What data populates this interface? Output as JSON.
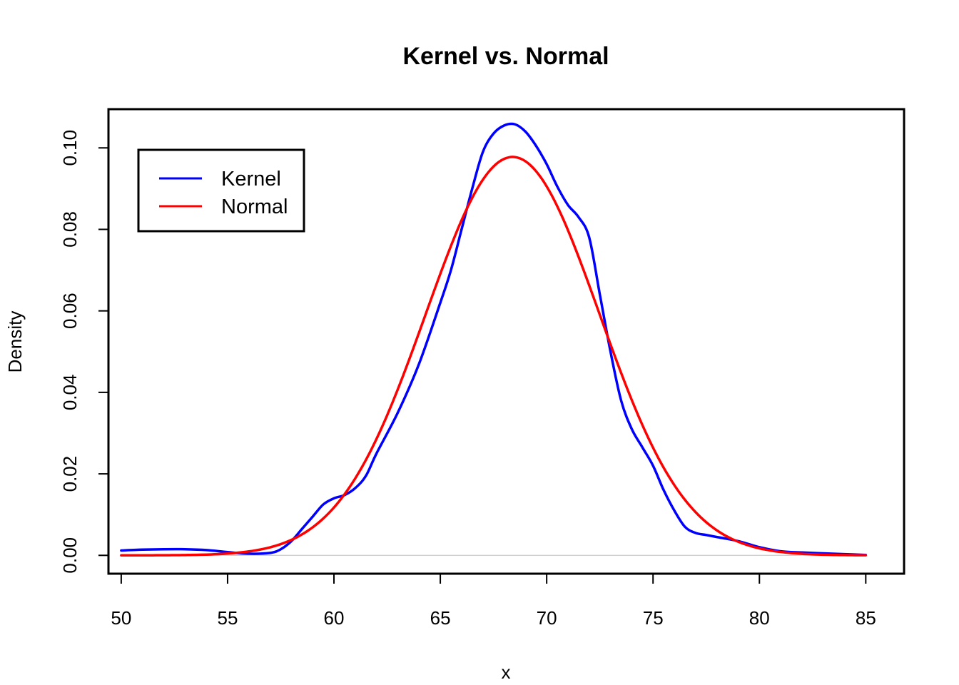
{
  "chart_data": {
    "type": "line",
    "title": "Kernel vs. Normal",
    "xlabel": "x",
    "ylabel": "Density",
    "xlim": [
      49.4,
      86.8
    ],
    "ylim": [
      -0.0045,
      0.1095
    ],
    "x_ticks": [
      50,
      55,
      60,
      65,
      70,
      75,
      80,
      85
    ],
    "y_ticks": [
      0.0,
      0.02,
      0.04,
      0.06,
      0.08,
      0.1
    ],
    "y_tick_labels": [
      "0.00",
      "0.02",
      "0.04",
      "0.06",
      "0.08",
      "0.10"
    ],
    "baseline": {
      "y": 0,
      "color": "#bebebe"
    },
    "legend": {
      "position": "top-left"
    },
    "series": [
      {
        "name": "Kernel",
        "color": "#0000ff",
        "x": [
          50,
          51,
          52,
          53,
          54,
          55,
          56,
          57,
          57.5,
          58,
          58.5,
          59,
          59.5,
          60,
          60.5,
          61,
          61.5,
          62,
          63,
          64,
          65,
          65.5,
          66,
          66.5,
          67,
          67.5,
          68,
          68.5,
          69,
          69.5,
          70,
          70.5,
          71,
          71.5,
          72,
          72.5,
          73,
          73.5,
          74,
          74.5,
          75,
          75.5,
          76,
          76.5,
          77,
          77.5,
          78,
          79,
          80,
          81,
          82,
          83,
          84,
          85
        ],
        "y": [
          0.0012,
          0.0014,
          0.0015,
          0.0015,
          0.0013,
          0.0008,
          0.0004,
          0.0006,
          0.0015,
          0.0035,
          0.0065,
          0.0095,
          0.0125,
          0.014,
          0.0148,
          0.0165,
          0.0195,
          0.025,
          0.035,
          0.047,
          0.062,
          0.07,
          0.08,
          0.09,
          0.099,
          0.1035,
          0.1055,
          0.1058,
          0.104,
          0.1005,
          0.096,
          0.0905,
          0.086,
          0.083,
          0.078,
          0.064,
          0.05,
          0.038,
          0.031,
          0.0265,
          0.022,
          0.016,
          0.011,
          0.007,
          0.0055,
          0.005,
          0.0045,
          0.0035,
          0.002,
          0.001,
          0.0007,
          0.0005,
          0.0003,
          0.0001
        ]
      },
      {
        "name": "Normal",
        "color": "#ff0000",
        "mean": 68.4,
        "sd": 4.08
      }
    ]
  }
}
